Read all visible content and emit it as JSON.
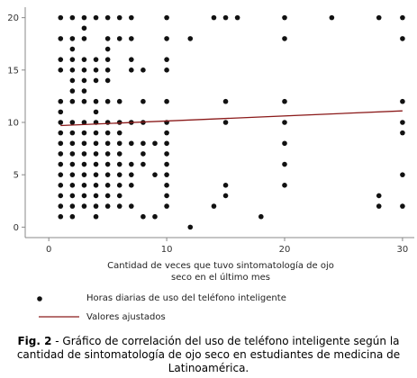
{
  "chart_data": {
    "type": "scatter",
    "title": "",
    "xlabel_lines": [
      "Cantidad de veces que tuvo sintomatología de ojo",
      "seco en el último mes"
    ],
    "ylabel": "",
    "xlim": [
      -2,
      31
    ],
    "ylim": [
      -1,
      21
    ],
    "xticks": [
      0,
      10,
      20,
      30
    ],
    "yticks": [
      0,
      5,
      10,
      15,
      20
    ],
    "grid": false,
    "legend_position": "bottom",
    "colors": {
      "points": "#111111",
      "fit_line": "#8b1a1a",
      "axis": "#888888"
    },
    "series": [
      {
        "name": "Horas diarias de uso del teléfono inteligente",
        "kind": "points",
        "points": [
          [
            1,
            20
          ],
          [
            2,
            20
          ],
          [
            3,
            20
          ],
          [
            4,
            20
          ],
          [
            5,
            20
          ],
          [
            6,
            20
          ],
          [
            7,
            20
          ],
          [
            10,
            20
          ],
          [
            14,
            20
          ],
          [
            15,
            20
          ],
          [
            16,
            20
          ],
          [
            20,
            20
          ],
          [
            24,
            20
          ],
          [
            28,
            20
          ],
          [
            30,
            20
          ],
          [
            3,
            19
          ],
          [
            1,
            18
          ],
          [
            2,
            18
          ],
          [
            3,
            18
          ],
          [
            5,
            18
          ],
          [
            6,
            18
          ],
          [
            7,
            18
          ],
          [
            10,
            18
          ],
          [
            12,
            18
          ],
          [
            20,
            18
          ],
          [
            30,
            18
          ],
          [
            2,
            17
          ],
          [
            5,
            17
          ],
          [
            1,
            16
          ],
          [
            2,
            16
          ],
          [
            3,
            16
          ],
          [
            4,
            16
          ],
          [
            5,
            16
          ],
          [
            7,
            16
          ],
          [
            10,
            16
          ],
          [
            1,
            15
          ],
          [
            2,
            15
          ],
          [
            3,
            15
          ],
          [
            4,
            15
          ],
          [
            5,
            15
          ],
          [
            7,
            15
          ],
          [
            8,
            15
          ],
          [
            10,
            15
          ],
          [
            2,
            14
          ],
          [
            3,
            14
          ],
          [
            4,
            14
          ],
          [
            5,
            14
          ],
          [
            2,
            13
          ],
          [
            3,
            13
          ],
          [
            1,
            12
          ],
          [
            2,
            12
          ],
          [
            3,
            12
          ],
          [
            4,
            12
          ],
          [
            5,
            12
          ],
          [
            6,
            12
          ],
          [
            8,
            12
          ],
          [
            10,
            12
          ],
          [
            15,
            12
          ],
          [
            20,
            12
          ],
          [
            30,
            12
          ],
          [
            1,
            11
          ],
          [
            4,
            11
          ],
          [
            1,
            10
          ],
          [
            2,
            10
          ],
          [
            3,
            10
          ],
          [
            4,
            10
          ],
          [
            5,
            10
          ],
          [
            6,
            10
          ],
          [
            7,
            10
          ],
          [
            8,
            10
          ],
          [
            10,
            10
          ],
          [
            15,
            10
          ],
          [
            20,
            10
          ],
          [
            30,
            10
          ],
          [
            1,
            9
          ],
          [
            2,
            9
          ],
          [
            3,
            9
          ],
          [
            4,
            9
          ],
          [
            5,
            9
          ],
          [
            6,
            9
          ],
          [
            10,
            9
          ],
          [
            30,
            9
          ],
          [
            1,
            8
          ],
          [
            2,
            8
          ],
          [
            3,
            8
          ],
          [
            4,
            8
          ],
          [
            5,
            8
          ],
          [
            6,
            8
          ],
          [
            7,
            8
          ],
          [
            8,
            8
          ],
          [
            9,
            8
          ],
          [
            10,
            8
          ],
          [
            20,
            8
          ],
          [
            1,
            7
          ],
          [
            2,
            7
          ],
          [
            3,
            7
          ],
          [
            4,
            7
          ],
          [
            5,
            7
          ],
          [
            6,
            7
          ],
          [
            8,
            7
          ],
          [
            10,
            7
          ],
          [
            1,
            6
          ],
          [
            2,
            6
          ],
          [
            3,
            6
          ],
          [
            4,
            6
          ],
          [
            5,
            6
          ],
          [
            6,
            6
          ],
          [
            7,
            6
          ],
          [
            8,
            6
          ],
          [
            10,
            6
          ],
          [
            20,
            6
          ],
          [
            1,
            5
          ],
          [
            2,
            5
          ],
          [
            3,
            5
          ],
          [
            4,
            5
          ],
          [
            5,
            5
          ],
          [
            6,
            5
          ],
          [
            7,
            5
          ],
          [
            9,
            5
          ],
          [
            10,
            5
          ],
          [
            30,
            5
          ],
          [
            1,
            4
          ],
          [
            2,
            4
          ],
          [
            3,
            4
          ],
          [
            4,
            4
          ],
          [
            5,
            4
          ],
          [
            6,
            4
          ],
          [
            7,
            4
          ],
          [
            10,
            4
          ],
          [
            15,
            4
          ],
          [
            20,
            4
          ],
          [
            1,
            3
          ],
          [
            2,
            3
          ],
          [
            3,
            3
          ],
          [
            4,
            3
          ],
          [
            5,
            3
          ],
          [
            6,
            3
          ],
          [
            10,
            3
          ],
          [
            15,
            3
          ],
          [
            28,
            3
          ],
          [
            1,
            2
          ],
          [
            2,
            2
          ],
          [
            3,
            2
          ],
          [
            4,
            2
          ],
          [
            5,
            2
          ],
          [
            6,
            2
          ],
          [
            7,
            2
          ],
          [
            10,
            2
          ],
          [
            14,
            2
          ],
          [
            28,
            2
          ],
          [
            30,
            2
          ],
          [
            1,
            1
          ],
          [
            2,
            1
          ],
          [
            4,
            1
          ],
          [
            8,
            1
          ],
          [
            9,
            1
          ],
          [
            18,
            1
          ],
          [
            12,
            0
          ]
        ]
      },
      {
        "name": "Valores ajustados",
        "kind": "line",
        "points": [
          [
            1,
            9.7
          ],
          [
            30,
            11.1
          ]
        ]
      }
    ]
  },
  "caption": {
    "label": "Fig. 2",
    "text": " - Gráfico de correlación del uso de teléfono inteligente según la cantidad de sintomatología de ojo seco en estudiantes de medicina de Latinoamérica."
  }
}
